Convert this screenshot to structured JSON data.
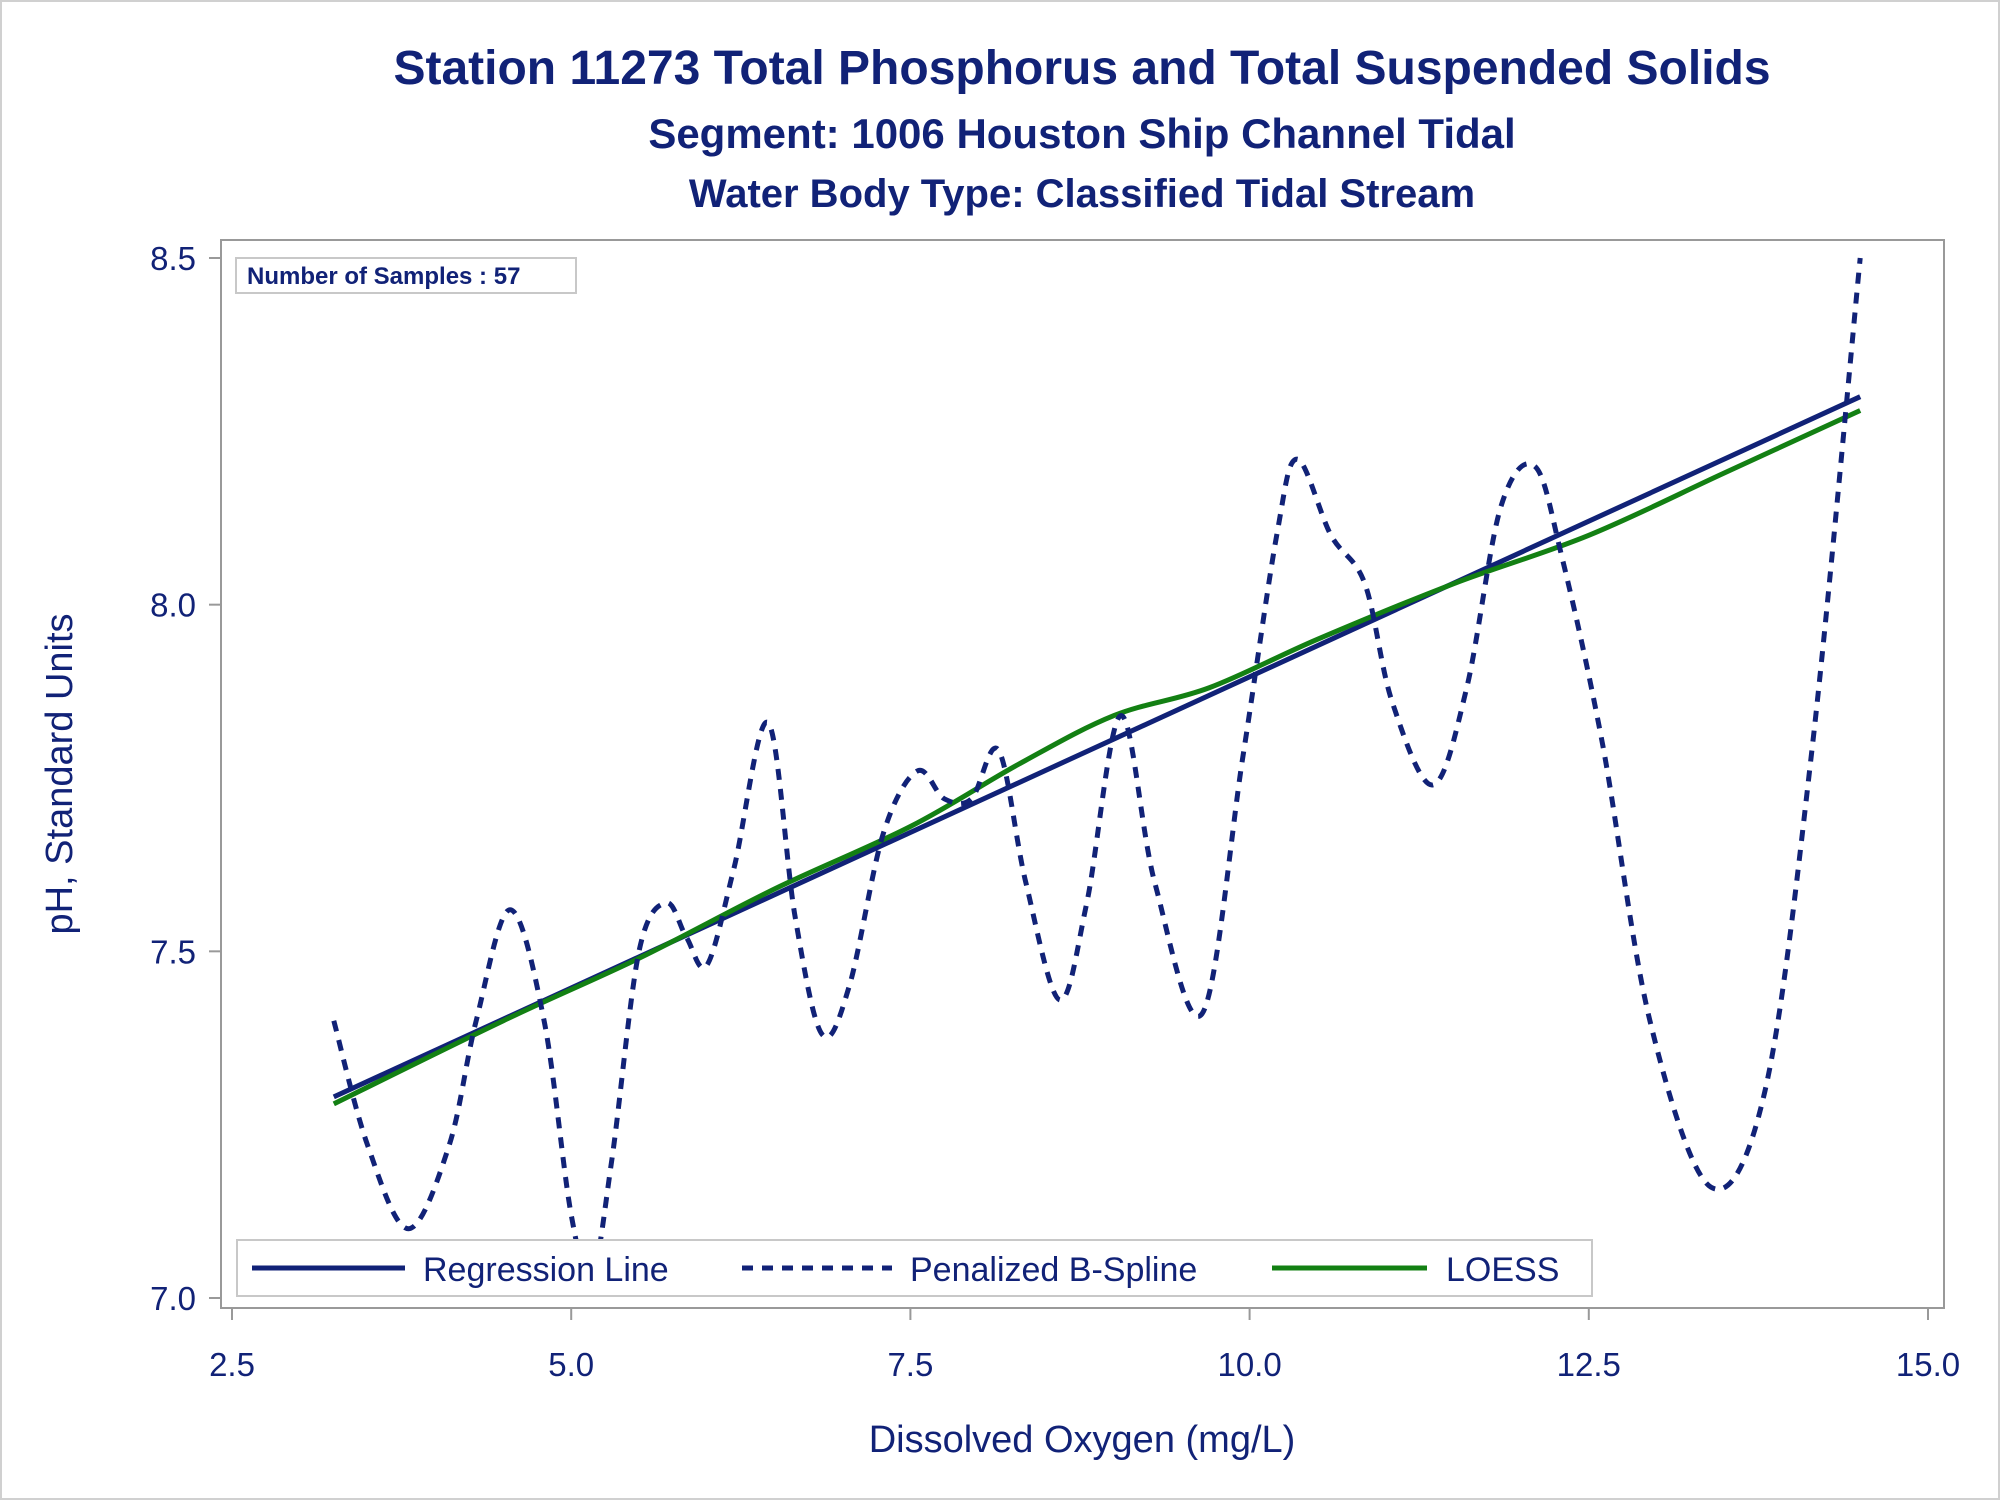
{
  "colors": {
    "regression": "#112277",
    "spline": "#112277",
    "loess": "#138013",
    "text": "#112277",
    "frame": "#999999"
  },
  "chart_data": {
    "type": "line",
    "title": "Station 11273  Total Phosphorus and Total Suspended Solids",
    "subtitle": "Segment: 1006  Houston Ship Channel Tidal",
    "subtitle2": "Water Body Type: Classified Tidal Stream",
    "xlabel": "Dissolved Oxygen (mg/L)",
    "ylabel": "pH, Standard Units",
    "xlim": [
      2.5,
      15.0
    ],
    "ylim": [
      7.0,
      8.5
    ],
    "xticks": [
      "2.5",
      "5.0",
      "7.5",
      "10.0",
      "12.5",
      "15.0"
    ],
    "yticks": [
      "7.0",
      "7.5",
      "8.0",
      "8.5"
    ],
    "annotation": "Number of Samples : 57",
    "legend_position": "bottom-inside",
    "series": [
      {
        "name": "Regression Line",
        "style": "solid",
        "x": [
          3.25,
          14.5
        ],
        "y": [
          7.29,
          8.3
        ]
      },
      {
        "name": "Penalized B-Spline",
        "style": "dashed",
        "x": [
          3.25,
          3.5,
          3.8,
          4.1,
          4.3,
          4.55,
          4.8,
          5.0,
          5.15,
          5.3,
          5.5,
          5.7,
          5.85,
          6.0,
          6.2,
          6.45,
          6.65,
          6.85,
          7.05,
          7.3,
          7.55,
          7.75,
          7.95,
          8.15,
          8.35,
          8.6,
          8.8,
          9.05,
          9.3,
          9.65,
          9.95,
          10.2,
          10.35,
          10.6,
          10.85,
          11.05,
          11.35,
          11.6,
          11.85,
          12.1,
          12.3,
          12.6,
          12.95,
          13.4,
          13.8,
          14.15,
          14.5
        ],
        "y": [
          7.4,
          7.22,
          7.1,
          7.22,
          7.4,
          7.56,
          7.4,
          7.12,
          7.03,
          7.2,
          7.5,
          7.57,
          7.52,
          7.48,
          7.62,
          7.83,
          7.55,
          7.38,
          7.45,
          7.67,
          7.76,
          7.72,
          7.72,
          7.79,
          7.6,
          7.43,
          7.57,
          7.84,
          7.6,
          7.41,
          7.78,
          8.1,
          8.21,
          8.1,
          8.03,
          7.86,
          7.74,
          7.88,
          8.14,
          8.2,
          8.07,
          7.8,
          7.4,
          7.16,
          7.3,
          7.8,
          8.5
        ]
      },
      {
        "name": "LOESS",
        "style": "solid",
        "x": [
          3.25,
          4.5,
          5.5,
          6.5,
          7.5,
          8.3,
          9.0,
          9.7,
          10.5,
          11.5,
          12.5,
          13.5,
          14.5
        ],
        "y": [
          7.28,
          7.4,
          7.49,
          7.59,
          7.68,
          7.77,
          7.84,
          7.88,
          7.95,
          8.03,
          8.1,
          8.19,
          8.28
        ]
      }
    ]
  }
}
